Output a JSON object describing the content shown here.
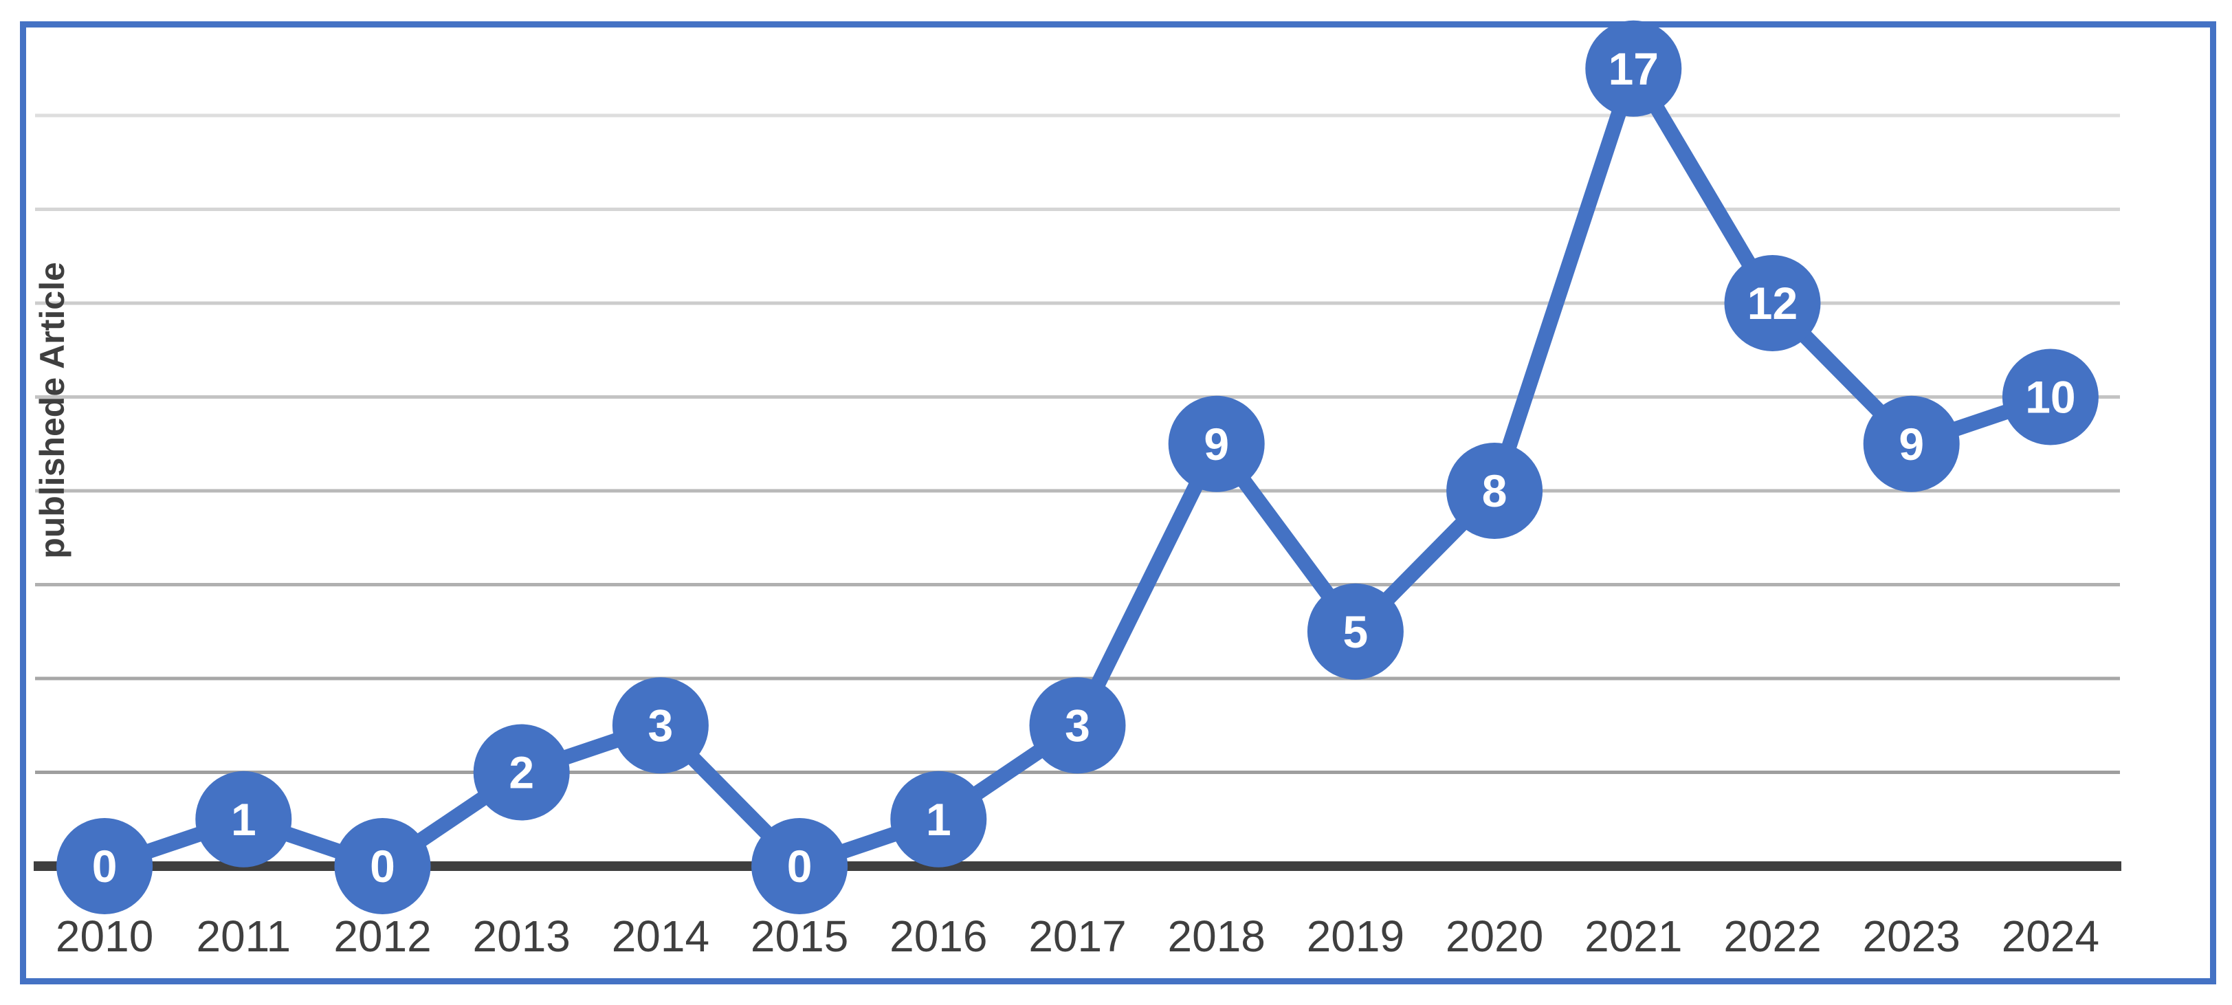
{
  "chart_data": {
    "type": "line",
    "title": "",
    "xlabel": "",
    "ylabel": "publishede Article",
    "categories": [
      "2010",
      "2011",
      "2012",
      "2013",
      "2014",
      "2015",
      "2016",
      "2017",
      "2018",
      "2019",
      "2020",
      "2021",
      "2022",
      "2023",
      "2024"
    ],
    "series": [
      {
        "name": "publishede Article",
        "values": [
          0,
          1,
          0,
          2,
          3,
          0,
          1,
          3,
          9,
          5,
          8,
          17,
          12,
          9,
          10
        ]
      }
    ],
    "ylim": [
      0,
      17
    ],
    "grid": true,
    "gridline_values": [
      2,
      4,
      6,
      8,
      10,
      12,
      14,
      16
    ],
    "legend_position": "none",
    "data_labels": "value centered inside each marker",
    "marker_style": "large solid circle",
    "colors": {
      "series": "#4472C4",
      "frame_border": "#4472C4",
      "zero_axis": "#3F3F3F",
      "tick_text": "#3F3F3F",
      "axis_title_text": "#3F3F3F",
      "data_label_text": "#FFFFFF",
      "gridline_light": "#DEDEDE",
      "gridline_dark": "#9E9E9E",
      "background": "#FFFFFF"
    }
  }
}
